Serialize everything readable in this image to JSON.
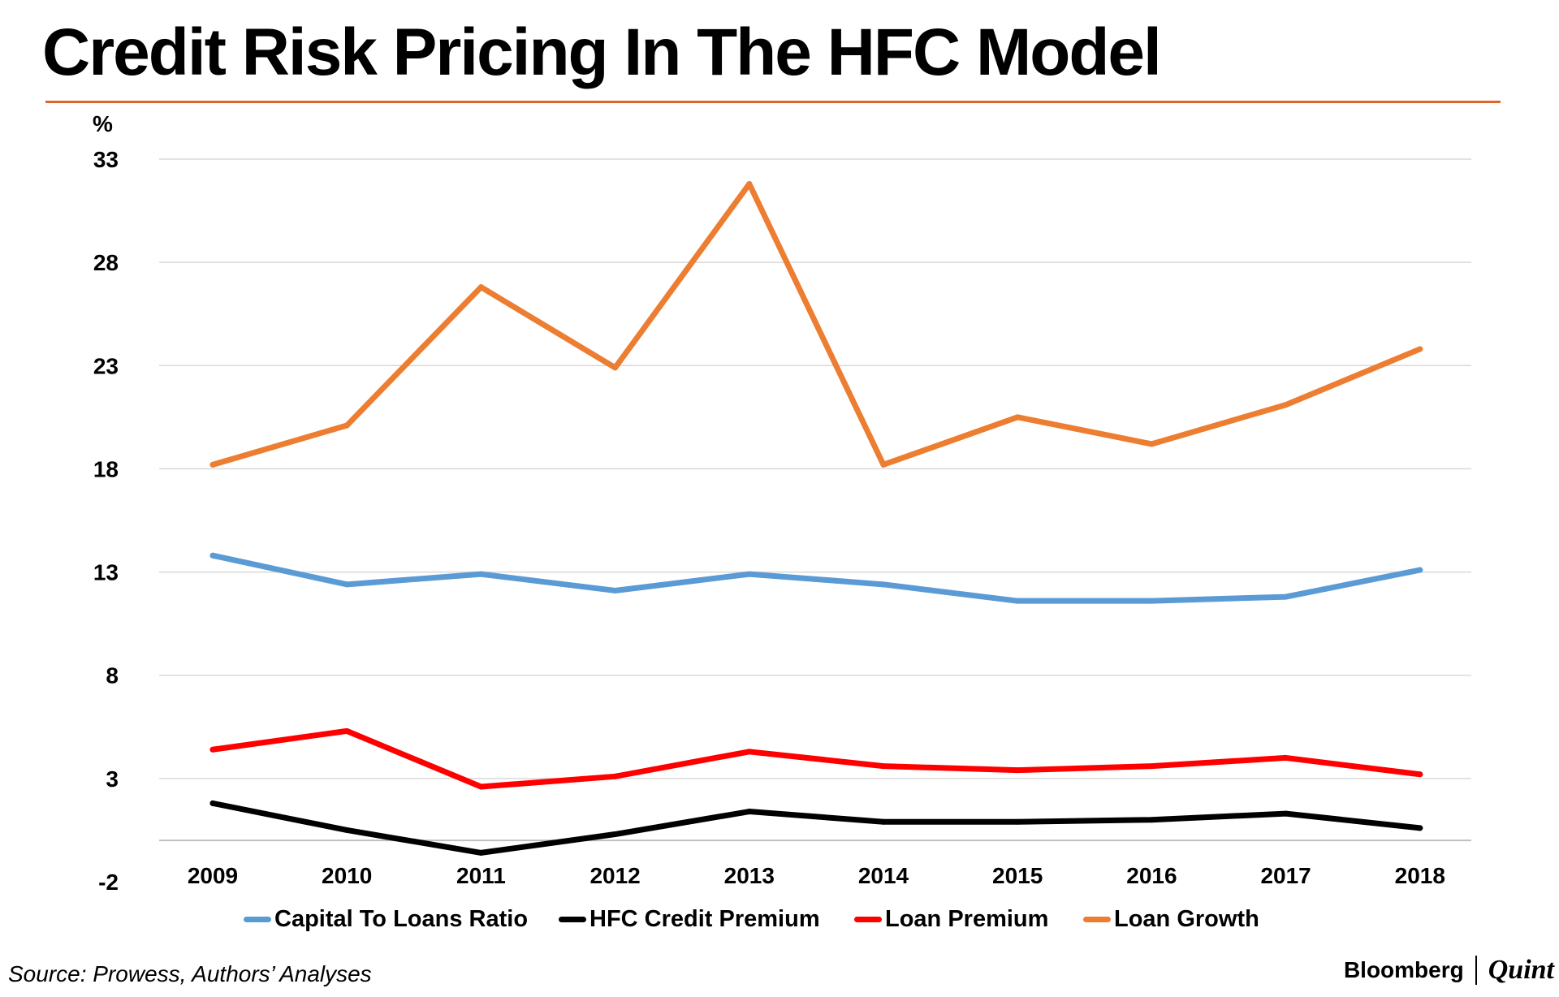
{
  "title": "Credit Risk Pricing In The HFC Model",
  "colors": {
    "accent_rule": "#e0632a",
    "grid": "#d9d9d9"
  },
  "chart_data": {
    "type": "line",
    "title": "Credit Risk Pricing In The HFC Model",
    "ylabel": "%",
    "xlabel": "",
    "ylim": [
      -2,
      33
    ],
    "yticks": [
      "33",
      "28",
      "23",
      "18",
      "13",
      "8",
      "3",
      "-2"
    ],
    "ytick_values": [
      33,
      28,
      23,
      18,
      13,
      8,
      3,
      -2
    ],
    "x_axis_at": 0,
    "grid": true,
    "categories": [
      "2009",
      "2010",
      "2011",
      "2012",
      "2013",
      "2014",
      "2015",
      "2016",
      "2017",
      "2018"
    ],
    "series": [
      {
        "name": "Capital To Loans Ratio",
        "color": "#5b9bd5",
        "values": [
          13.8,
          12.4,
          12.9,
          12.1,
          12.9,
          12.4,
          11.6,
          11.6,
          11.8,
          13.1
        ]
      },
      {
        "name": "HFC Credit Premium",
        "color": "#000000",
        "values": [
          1.8,
          0.5,
          -0.6,
          0.3,
          1.4,
          0.9,
          0.9,
          1.0,
          1.3,
          0.6
        ]
      },
      {
        "name": "Loan Premium",
        "color": "#ff0000",
        "values": [
          4.4,
          5.3,
          2.6,
          3.1,
          4.3,
          3.6,
          3.4,
          3.6,
          4.0,
          3.2
        ]
      },
      {
        "name": "Loan Growth",
        "color": "#ed7d31",
        "values": [
          18.2,
          20.1,
          26.8,
          22.9,
          31.8,
          18.2,
          20.5,
          19.2,
          21.1,
          23.8
        ]
      }
    ],
    "legend_position": "bottom",
    "source": "Source: Prowess, Authors’ Analyses"
  },
  "brand": {
    "left": "Bloomberg",
    "right": "Quint"
  }
}
